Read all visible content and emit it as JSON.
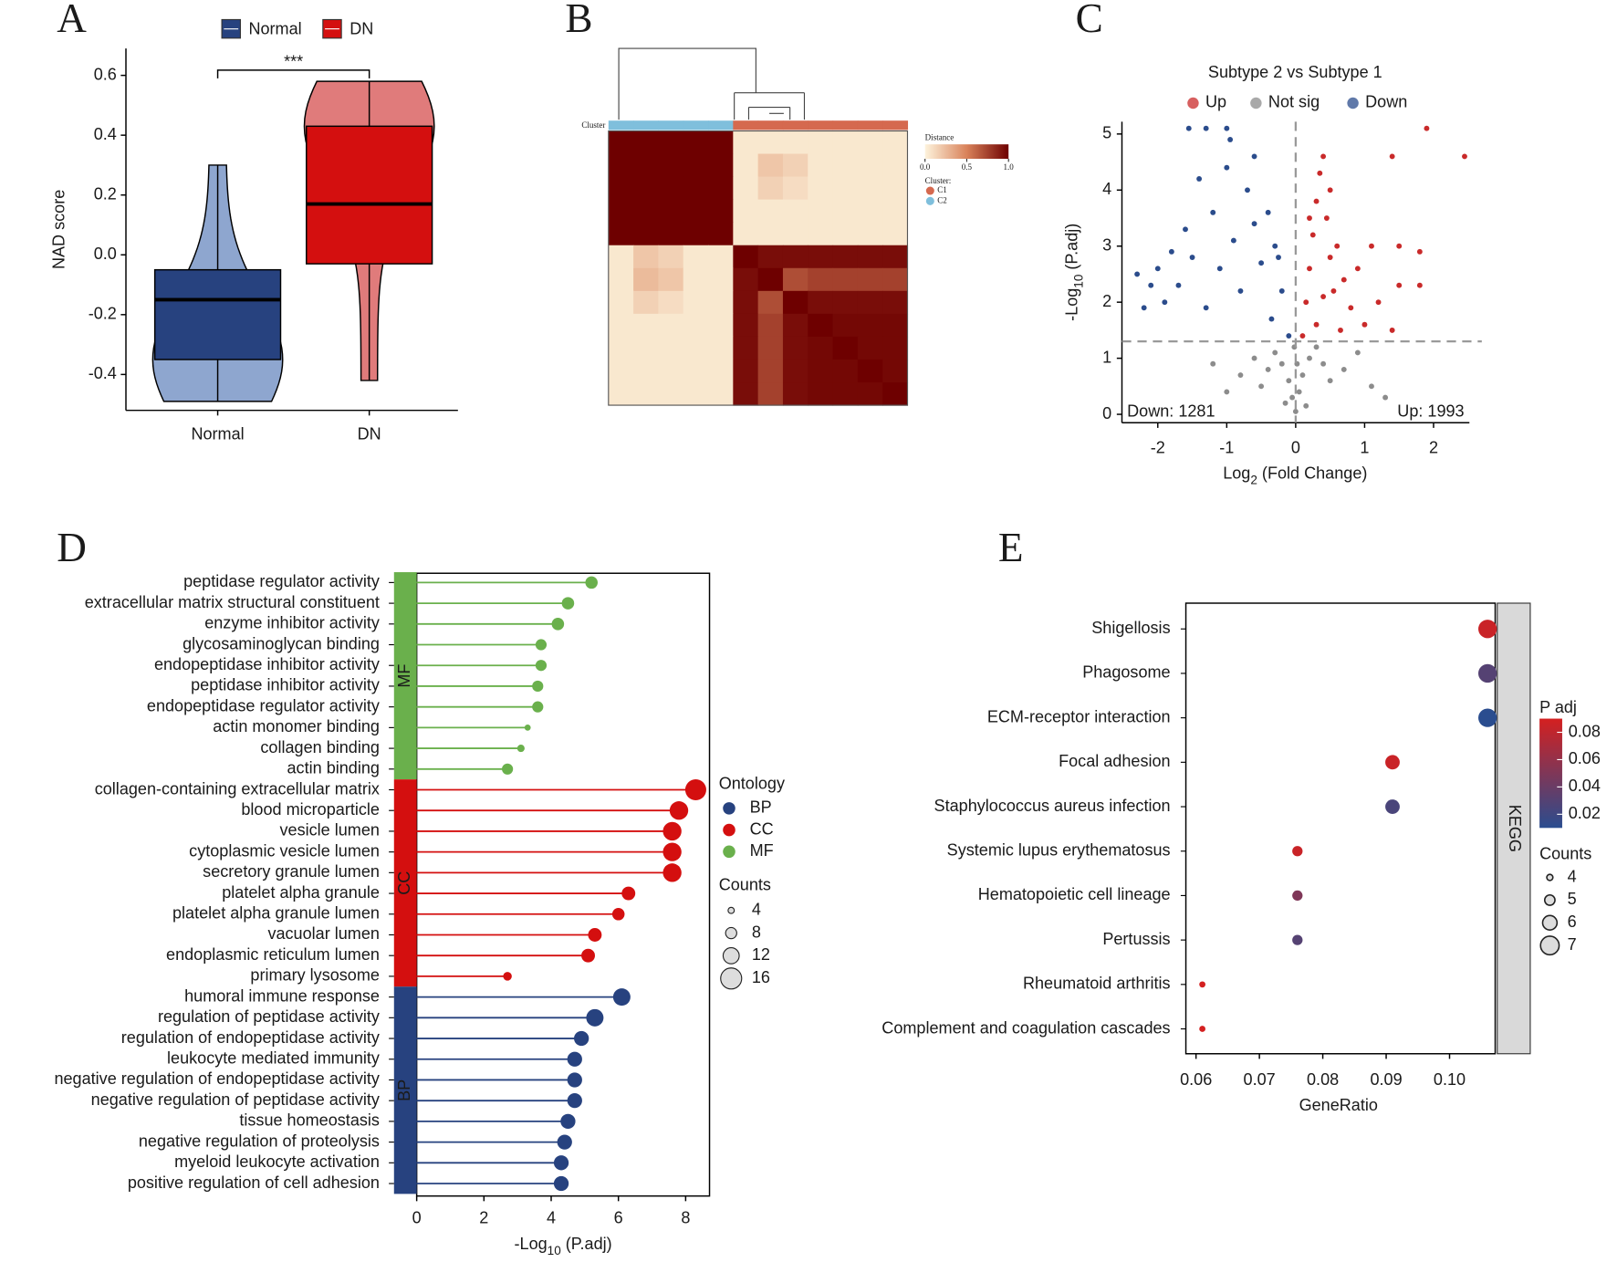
{
  "chart_data": [
    {
      "type": "violin_box",
      "panel": "A",
      "ylabel": "NAD score",
      "annotation": "***",
      "categories": [
        "Normal",
        "DN"
      ],
      "series": [
        {
          "name": "Normal",
          "color": "#27427f",
          "violin_color": "#8ea6cf",
          "min": -0.49,
          "q1": -0.35,
          "median": -0.15,
          "q3": -0.05,
          "max": 0.3
        },
        {
          "name": "DN",
          "color": "#d40f0f",
          "violin_color": "#e07b7b",
          "min": -0.42,
          "q1": -0.03,
          "median": 0.17,
          "q3": 0.43,
          "max": 0.58
        }
      ],
      "ylim": [
        -0.52,
        0.69
      ],
      "yticks": [
        0.6,
        0.4,
        0.2,
        {
          "value": 0,
          "label": "0.0"
        },
        -0.2,
        -0.4
      ]
    },
    {
      "type": "heatmap",
      "panel": "B",
      "cluster_label": "Cluster",
      "legend_title": "Distance",
      "colors": [
        "#fdf3dc",
        "#d9825a",
        "#6e0000"
      ],
      "colorbar_lim": [
        0,
        1
      ],
      "colorbar_ticks": [
        {
          "value": 0,
          "label": "0.0"
        },
        0.5,
        {
          "value": 1,
          "label": "1.0"
        }
      ],
      "cluster_title": "Cluster:",
      "clusters": [
        {
          "name": "C1",
          "color": "#d5694f"
        },
        {
          "name": "C2",
          "color": "#7fbfdc"
        }
      ],
      "sample_clusters": [
        "C2",
        "C2",
        "C2",
        "C2",
        "C2",
        "C1",
        "C1",
        "C1",
        "C1",
        "C1",
        "C1",
        "C1"
      ],
      "matrix": [
        [
          1,
          1,
          1,
          1,
          1,
          0.05,
          0.05,
          0.05,
          0.05,
          0.05,
          0.05,
          0.05
        ],
        [
          1,
          1,
          1,
          1,
          1,
          0.05,
          0.2,
          0.15,
          0.05,
          0.05,
          0.05,
          0.05
        ],
        [
          1,
          1,
          1,
          1,
          1,
          0.05,
          0.15,
          0.1,
          0.05,
          0.05,
          0.05,
          0.05
        ],
        [
          1,
          1,
          1,
          1,
          1,
          0.05,
          0.05,
          0.05,
          0.05,
          0.05,
          0.05,
          0.05
        ],
        [
          1,
          1,
          1,
          1,
          1,
          0.05,
          0.05,
          0.05,
          0.05,
          0.05,
          0.05,
          0.05
        ],
        [
          0.05,
          0.2,
          0.15,
          0.05,
          0.05,
          1,
          0.95,
          0.95,
          0.95,
          0.95,
          0.95,
          0.95
        ],
        [
          0.05,
          0.25,
          0.2,
          0.05,
          0.05,
          0.95,
          1,
          0.7,
          0.75,
          0.75,
          0.75,
          0.75
        ],
        [
          0.05,
          0.15,
          0.1,
          0.05,
          0.05,
          0.95,
          0.7,
          1,
          0.95,
          0.95,
          0.95,
          0.95
        ],
        [
          0.05,
          0.05,
          0.05,
          0.05,
          0.05,
          0.95,
          0.75,
          0.95,
          1,
          0.97,
          0.97,
          0.97
        ],
        [
          0.05,
          0.05,
          0.05,
          0.05,
          0.05,
          0.95,
          0.75,
          0.95,
          0.97,
          1,
          0.97,
          0.97
        ],
        [
          0.05,
          0.05,
          0.05,
          0.05,
          0.05,
          0.95,
          0.75,
          0.95,
          0.97,
          0.97,
          1,
          0.97
        ],
        [
          0.05,
          0.05,
          0.05,
          0.05,
          0.05,
          0.95,
          0.75,
          0.95,
          0.97,
          0.97,
          0.97,
          1
        ]
      ]
    },
    {
      "type": "volcano",
      "panel": "C",
      "title": "Subtype 2 vs Subtype 1",
      "xlabel": [
        "Log",
        "2",
        " (Fold Change)"
      ],
      "ylabel": [
        "-Log",
        "10",
        " (P.adj)"
      ],
      "xlim": [
        -2.52,
        2.52
      ],
      "ylim": [
        -0.15,
        5.22
      ],
      "xticks": [
        -2,
        -1,
        0,
        1,
        2
      ],
      "yticks": [
        0,
        1,
        2,
        3,
        4,
        5
      ],
      "threshold_x": 0,
      "threshold_y": 1.3,
      "annotations": [
        {
          "text": "Down: 1281",
          "color": "#2b4c8c"
        },
        {
          "text": "Up: 1993",
          "color": "#c92a2a"
        }
      ],
      "series": [
        {
          "name": "Up",
          "color": "#c92a2a",
          "x": [
            0.1,
            0.15,
            0.2,
            0.25,
            0.3,
            0.35,
            0.4,
            0.45,
            0.5,
            0.55,
            0.6,
            0.7,
            0.8,
            0.9,
            1.0,
            1.1,
            1.2,
            1.4,
            1.5,
            1.4,
            1.5,
            1.8,
            1.8,
            1.9,
            2.45,
            0.3,
            0.2,
            0.5,
            0.65,
            0.4
          ],
          "y": [
            1.4,
            2.0,
            2.6,
            3.2,
            3.8,
            4.3,
            4.6,
            3.5,
            2.8,
            2.2,
            3.0,
            2.4,
            1.9,
            2.6,
            1.6,
            3.0,
            2.0,
            1.5,
            2.3,
            4.6,
            3.0,
            2.9,
            2.3,
            5.1,
            4.6,
            1.6,
            3.5,
            4.0,
            1.5,
            2.1
          ]
        },
        {
          "name": "Not sig",
          "color": "#8c8c8c",
          "x": [
            0,
            -0.05,
            0.05,
            -0.1,
            0.1,
            -0.2,
            0.2,
            -0.3,
            0.3,
            -0.4,
            0.4,
            -0.5,
            0.5,
            -0.6,
            0.7,
            -0.8,
            0.9,
            -1.0,
            1.1,
            -1.2,
            1.3,
            -0.15,
            0.15,
            -0.02,
            0.02
          ],
          "y": [
            0.05,
            0.3,
            0.4,
            0.6,
            0.7,
            0.9,
            1.0,
            1.1,
            1.2,
            0.8,
            0.9,
            0.5,
            0.6,
            1.0,
            0.8,
            0.7,
            1.1,
            0.4,
            0.5,
            0.9,
            0.3,
            0.2,
            0.15,
            1.2,
            0.9
          ]
        },
        {
          "name": "Down",
          "color": "#2b4c8c",
          "x": [
            -0.1,
            -0.2,
            -0.3,
            -0.4,
            -0.5,
            -0.6,
            -0.7,
            -0.8,
            -0.9,
            -1.0,
            -1.1,
            -1.2,
            -1.3,
            -1.4,
            -1.5,
            -1.6,
            -1.7,
            -1.8,
            -1.9,
            -2.0,
            -2.1,
            -2.2,
            -2.3,
            -1.55,
            -1.3,
            -1.0,
            -0.95,
            -0.6,
            -0.35,
            -0.25
          ],
          "y": [
            1.4,
            2.2,
            3.0,
            3.6,
            2.7,
            3.4,
            4.0,
            2.2,
            3.1,
            4.4,
            2.6,
            3.6,
            1.9,
            4.2,
            2.8,
            3.3,
            2.3,
            2.9,
            2.0,
            2.6,
            2.3,
            1.9,
            2.5,
            5.1,
            5.1,
            5.1,
            4.9,
            4.6,
            1.7,
            2.8
          ]
        }
      ]
    },
    {
      "type": "lollipop",
      "panel": "D",
      "legend_title": "Ontology",
      "size_title": "Counts",
      "size_ticks": [
        4,
        8,
        12,
        16
      ],
      "xlabel": [
        "-Log",
        "10",
        " (P.adj)"
      ],
      "xlim": [
        0,
        8.71
      ],
      "xticks": [
        0,
        2,
        4,
        6,
        8
      ],
      "series": [
        {
          "name": "MF",
          "color": "#6ab04c",
          "categories": [
            "peptidase regulator activity",
            "extracellular matrix structural constituent",
            "enzyme inhibitor activity",
            "glycosaminoglycan binding",
            "endopeptidase inhibitor activity",
            "peptidase inhibitor activity",
            "endopeptidase regulator activity",
            "actin monomer binding",
            "collagen binding",
            "actin binding"
          ],
          "values": [
            5.2,
            4.5,
            4.2,
            3.7,
            3.7,
            3.6,
            3.6,
            3.3,
            3.1,
            2.7
          ],
          "counts": [
            9,
            9,
            9,
            8,
            8,
            8,
            8,
            4,
            5,
            8
          ]
        },
        {
          "name": "CC",
          "color": "#d40f0f",
          "categories": [
            "collagen-containing extracellular matrix",
            "blood microparticle",
            "vesicle lumen",
            "cytoplasmic vesicle lumen",
            "secretory granule lumen",
            "platelet alpha granule",
            "platelet alpha granule lumen",
            "vacuolar lumen",
            "endoplasmic reticulum lumen",
            "primary lysosome"
          ],
          "values": [
            8.3,
            7.8,
            7.6,
            7.6,
            7.6,
            6.3,
            6.0,
            5.3,
            5.1,
            2.7
          ],
          "counts": [
            16,
            14,
            14,
            14,
            14,
            10,
            9,
            10,
            10,
            6
          ]
        },
        {
          "name": "BP",
          "color": "#27427f",
          "categories": [
            "humoral immune response",
            "regulation of peptidase activity",
            "regulation of endopeptidase activity",
            "leukocyte mediated immunity",
            "negative regulation of endopeptidase activity",
            "negative regulation of peptidase activity",
            "tissue homeostasis",
            "negative regulation of proteolysis",
            "myeloid leukocyte activation",
            "positive regulation of cell adhesion"
          ],
          "values": [
            6.1,
            5.3,
            4.9,
            4.7,
            4.7,
            4.7,
            4.5,
            4.4,
            4.3,
            4.3
          ],
          "counts": [
            13,
            13,
            11,
            11,
            11,
            11,
            11,
            11,
            11,
            11
          ]
        }
      ]
    },
    {
      "type": "dot",
      "panel": "E",
      "facet": "KEGG",
      "xlabel": "GeneRatio",
      "categories": [
        "Shigellosis",
        "Phagosome",
        "ECM-receptor interaction",
        "Focal adhesion",
        "Staphylococcus aureus infection",
        "Systemic lupus erythematosus",
        "Hematopoietic cell lineage",
        "Pertussis",
        "Rheumatoid arthritis",
        "Complement and coagulation cascades"
      ],
      "values": [
        0.106,
        0.106,
        0.106,
        0.091,
        0.091,
        0.076,
        0.076,
        0.076,
        0.061,
        0.061
      ],
      "padj": [
        0.085,
        0.03,
        0.01,
        0.085,
        0.025,
        0.085,
        0.05,
        0.03,
        0.09,
        0.09
      ],
      "counts": [
        7,
        7,
        7,
        6,
        6,
        5,
        5,
        5,
        4,
        4
      ],
      "xlim": [
        0.0584,
        0.1072
      ],
      "xticks": [
        0.06,
        0.07,
        0.08,
        0.09,
        {
          "value": 0.1,
          "label": "0.10"
        }
      ],
      "color_title": "P adj",
      "colors": [
        "#2a4d8f",
        "#d42020"
      ],
      "color_lim": [
        0.01,
        0.09
      ],
      "color_ticks": [
        0.08,
        0.06,
        0.04,
        0.02
      ],
      "size_title": "Counts",
      "size_ticks": [
        4,
        5,
        6,
        7
      ]
    }
  ]
}
